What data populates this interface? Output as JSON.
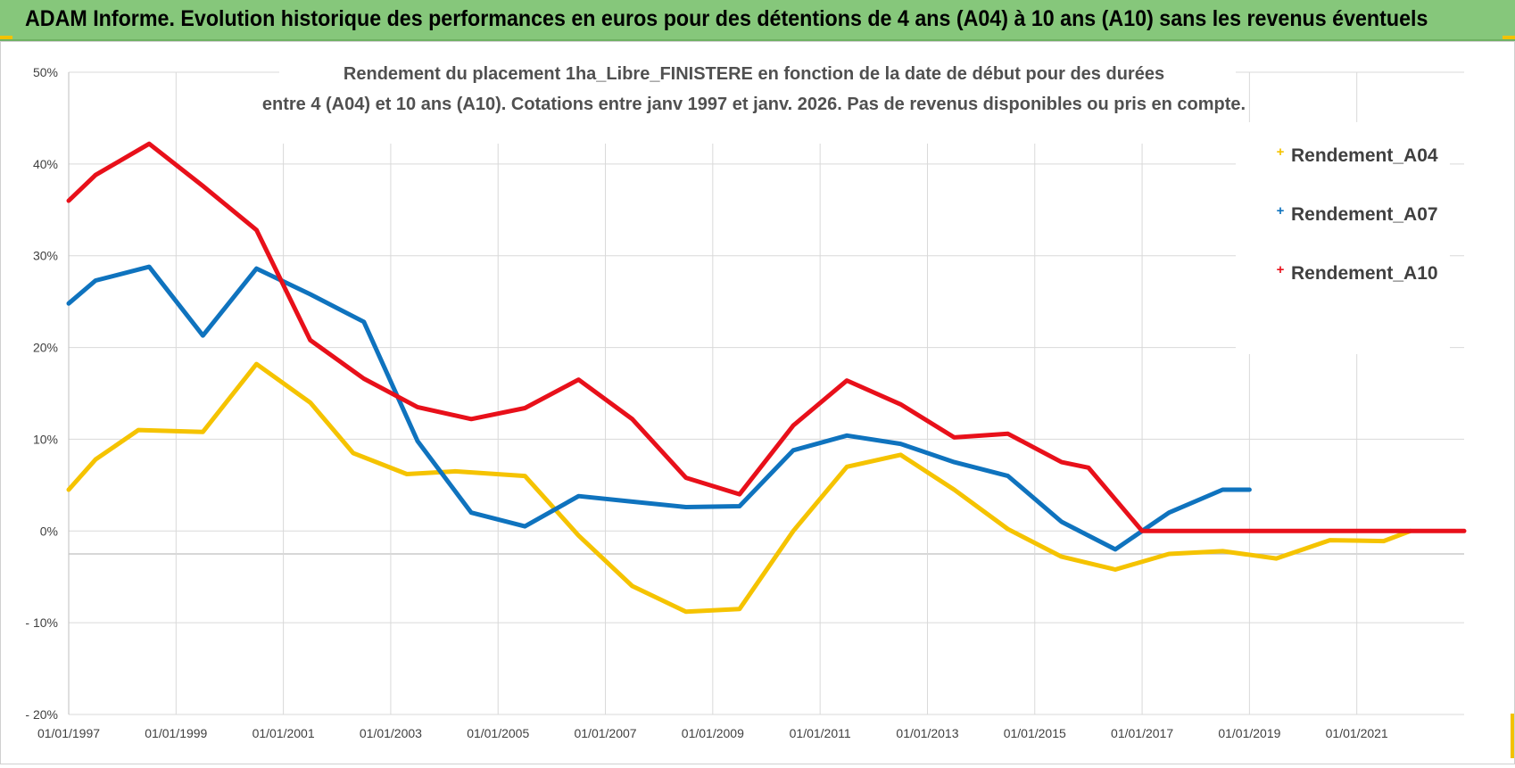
{
  "header": {
    "title": "ADAM Informe. Evolution historique des performances en euros pour des détentions de 4 ans (A04) à 10 ans (A10) sans les revenus éventuels",
    "background": "#86c77b"
  },
  "chart_data": {
    "type": "line",
    "title_lines": [
      "Rendement du placement 1ha_Libre_FINISTERE en fonction de la date de début pour des durées",
      "entre 4 (A04) et 10 ans (A10).  Cotations entre janv 1997 et janv. 2026. Pas de revenus disponibles ou pris en compte."
    ],
    "xlabel": "",
    "ylabel": "",
    "xlim": [
      1997.0,
      2023.0
    ],
    "ylim": [
      -20,
      50
    ],
    "y_ticks": [
      50,
      40,
      30,
      20,
      10,
      0,
      -10,
      -20
    ],
    "y_tick_labels": [
      "50%",
      "40%",
      "30%",
      "20%",
      "10%",
      "0%",
      "- 10%",
      "- 20%"
    ],
    "x_ticks": [
      1997,
      1999,
      2001,
      2003,
      2005,
      2007,
      2009,
      2011,
      2013,
      2015,
      2017,
      2019,
      2021
    ],
    "x_tick_labels": [
      "01/01/1997",
      "01/01/1999",
      "01/01/2001",
      "01/01/2003",
      "01/01/2005",
      "01/01/2007",
      "01/01/2009",
      "01/01/2011",
      "01/01/2013",
      "01/01/2015",
      "01/01/2017",
      "01/01/2019",
      "01/01/2021"
    ],
    "grid": true,
    "legend_position": "top-right",
    "series": [
      {
        "name": "Rendement_A04",
        "color": "#f5c300",
        "x": [
          1997.0,
          1997.5,
          1998.3,
          1999.5,
          2000.5,
          2001.5,
          2002.3,
          2003.3,
          2004.2,
          2005.5,
          2006.5,
          2007.5,
          2008.5,
          2009.5,
          2010.5,
          2011.5,
          2012.5,
          2013.5,
          2014.5,
          2015.5,
          2016.5,
          2017.5,
          2018.5,
          2019.5,
          2020.5,
          2021.5,
          2022.0
        ],
        "y": [
          4.5,
          7.8,
          11.0,
          10.8,
          18.2,
          14.0,
          8.5,
          6.2,
          6.5,
          6.0,
          -0.5,
          -6.0,
          -8.8,
          -8.5,
          0.0,
          7.0,
          8.3,
          4.5,
          0.2,
          -2.8,
          -4.2,
          -2.5,
          -2.2,
          -3.0,
          -1.0,
          -1.1,
          0.0
        ]
      },
      {
        "name": "Rendement_A07",
        "color": "#0f73be",
        "x": [
          1997.0,
          1997.5,
          1998.5,
          1999.5,
          2000.5,
          2001.5,
          2002.5,
          2003.5,
          2004.5,
          2005.5,
          2006.5,
          2007.5,
          2008.5,
          2009.5,
          2010.5,
          2011.5,
          2012.5,
          2013.5,
          2014.5,
          2015.5,
          2016.5,
          2017.5,
          2018.5,
          2019.0
        ],
        "y": [
          24.8,
          27.3,
          28.8,
          21.3,
          28.6,
          25.8,
          22.8,
          9.8,
          2.0,
          0.5,
          3.8,
          3.2,
          2.6,
          2.7,
          8.8,
          10.4,
          9.5,
          7.5,
          6.0,
          1.0,
          -2.0,
          2.0,
          4.5,
          4.5
        ]
      },
      {
        "name": "Rendement_A10",
        "color": "#e8101a",
        "x": [
          1997.0,
          1997.5,
          1998.5,
          1999.5,
          2000.5,
          2001.5,
          2002.5,
          2003.5,
          2004.5,
          2005.5,
          2006.5,
          2007.5,
          2008.5,
          2009.5,
          2010.5,
          2011.5,
          2012.5,
          2013.5,
          2014.5,
          2015.5,
          2016.0,
          2017.0,
          2018.0,
          2019.0,
          2020.0,
          2021.0,
          2022.0,
          2023.0
        ],
        "y": [
          36.0,
          38.8,
          42.2,
          37.6,
          32.8,
          20.8,
          16.6,
          13.5,
          12.2,
          13.4,
          16.5,
          12.2,
          5.8,
          4.0,
          11.5,
          16.4,
          13.8,
          10.2,
          10.6,
          7.5,
          6.9,
          0.0,
          0.0,
          0.0,
          0.0,
          0.0,
          0.0,
          0.0
        ]
      }
    ]
  }
}
